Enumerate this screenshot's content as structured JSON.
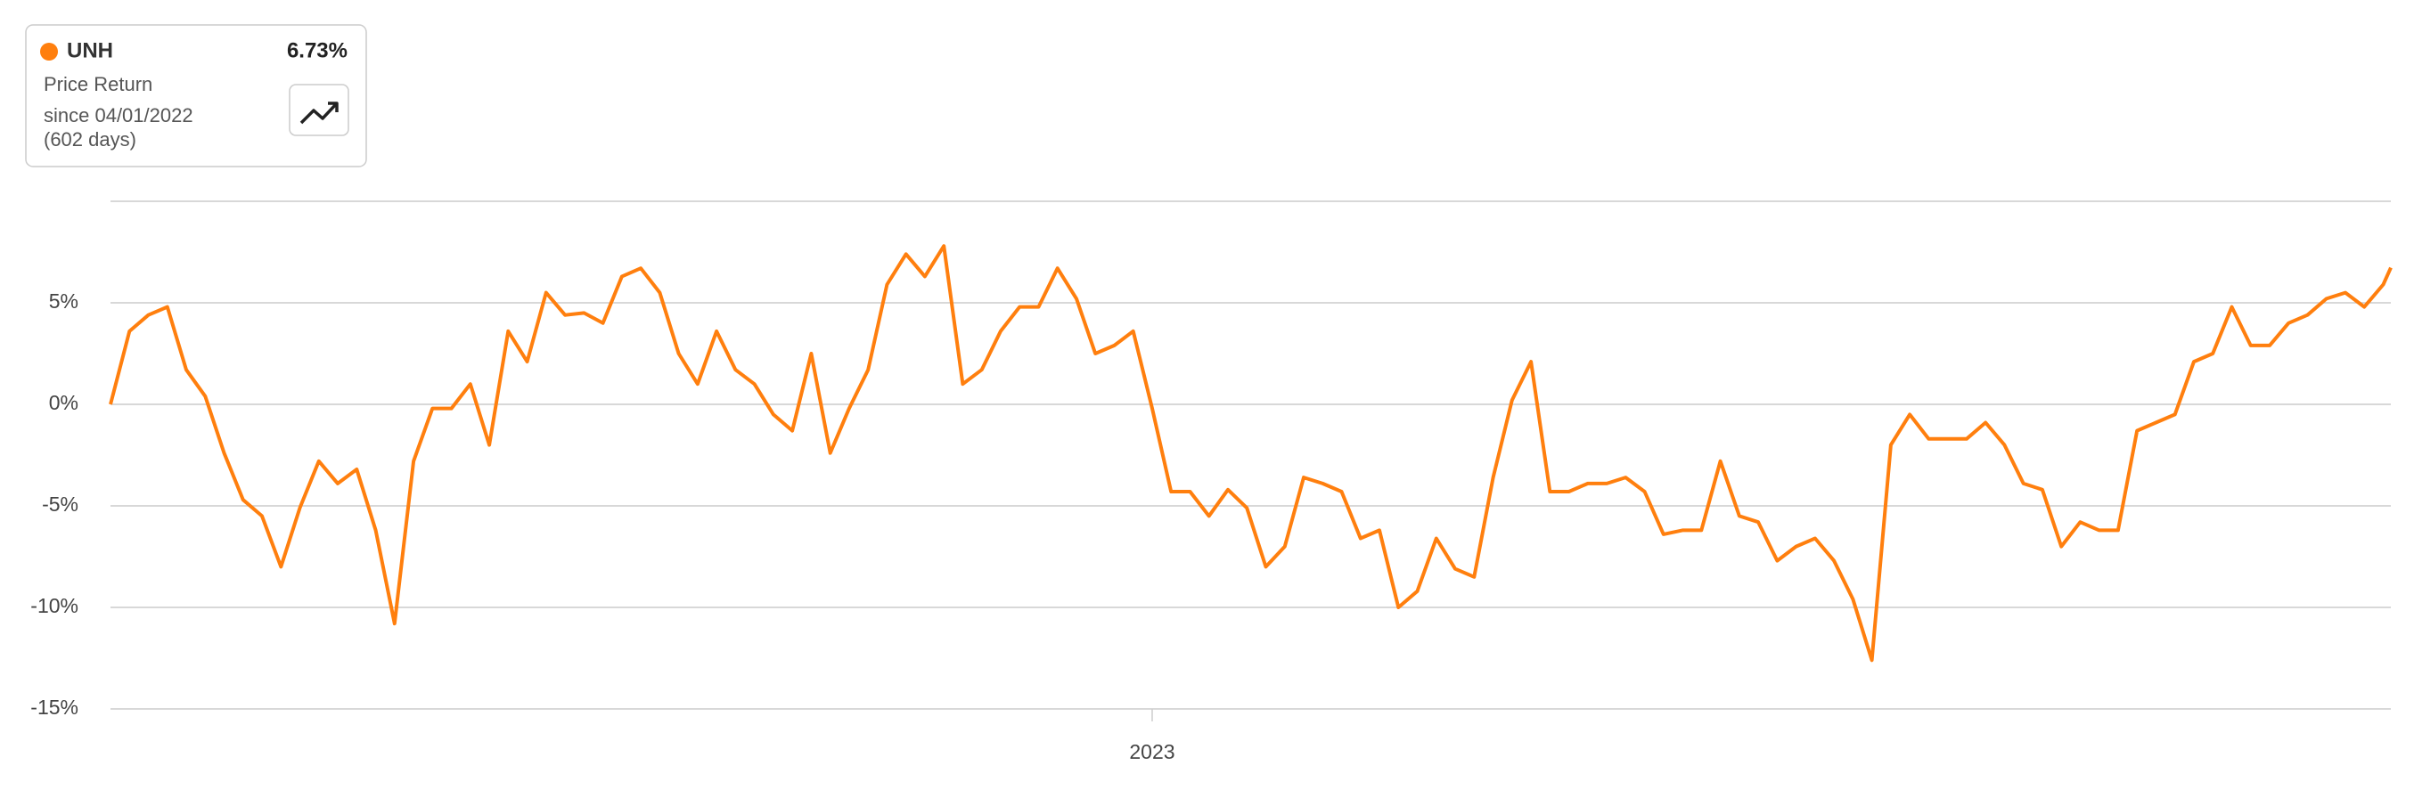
{
  "card": {
    "ticker": "UNH",
    "return": "6.73%",
    "metric": "Price Return",
    "since": "since 04/01/2022",
    "days": "(602 days)"
  },
  "chart_data": {
    "type": "line",
    "x": [
      0,
      5,
      10,
      15,
      20,
      25,
      30,
      35,
      40,
      45,
      50,
      55,
      60,
      65,
      70,
      75,
      80,
      85,
      90,
      95,
      100,
      105,
      110,
      115,
      120,
      125,
      130,
      135,
      140,
      145,
      150,
      155,
      160,
      165,
      170,
      175,
      180,
      185,
      190,
      195,
      200,
      205,
      210,
      215,
      220,
      225,
      230,
      235,
      240,
      245,
      250,
      255,
      260,
      265,
      270,
      275,
      280,
      285,
      290,
      295,
      300,
      305,
      310,
      315,
      320,
      325,
      330,
      335,
      340,
      345,
      350,
      355,
      360,
      365,
      370,
      375,
      380,
      385,
      390,
      395,
      400,
      405,
      410,
      415,
      420,
      425,
      430,
      435,
      440,
      445,
      450,
      455,
      460,
      465,
      470,
      475,
      480,
      485,
      490,
      495,
      500,
      505,
      510,
      515,
      520,
      525,
      530,
      535,
      540,
      545,
      550,
      555,
      560,
      565,
      570,
      575,
      580,
      585,
      590,
      595,
      600,
      602
    ],
    "series": [
      {
        "name": "UNH",
        "color": "#ff7f0e",
        "values": [
          0,
          3.6,
          4.4,
          4.8,
          1.7,
          0.4,
          -2.4,
          -4.7,
          -5.5,
          -8.0,
          -5.1,
          -2.8,
          -3.9,
          -3.2,
          -6.2,
          -10.8,
          -2.8,
          -0.2,
          -0.2,
          1.0,
          -2.0,
          3.6,
          2.1,
          5.5,
          4.4,
          4.5,
          4.0,
          6.3,
          6.7,
          5.5,
          2.5,
          1.0,
          3.6,
          1.7,
          1.0,
          -0.5,
          -1.3,
          2.5,
          -2.4,
          -0.2,
          1.7,
          5.9,
          7.4,
          6.3,
          7.8,
          1.0,
          1.7,
          3.6,
          4.8,
          4.8,
          6.7,
          5.2,
          2.5,
          2.9,
          3.6,
          -0.2,
          -4.3,
          -4.3,
          -5.5,
          -4.2,
          -5.1,
          -8.0,
          -7.0,
          -3.6,
          -3.9,
          -4.3,
          -6.6,
          -6.2,
          -10.0,
          -9.2,
          -6.6,
          -8.1,
          -8.5,
          -3.6,
          0.2,
          2.1,
          -4.3,
          -4.3,
          -3.9,
          -3.9,
          -3.6,
          -4.3,
          -6.4,
          -6.2,
          -6.2,
          -2.8,
          -5.5,
          -5.8,
          -7.7,
          -7.0,
          -6.6,
          -7.7,
          -9.6,
          -12.6,
          -2.0,
          -0.5,
          -1.7,
          -1.7,
          -1.7,
          -0.9,
          -2.0,
          -3.9,
          -4.2,
          -7.0,
          -5.8,
          -6.2,
          -6.2,
          -1.3,
          -0.9,
          -0.5,
          2.1,
          2.5,
          4.8,
          2.9,
          2.9,
          4.0,
          4.4,
          5.2,
          5.5,
          4.8,
          5.9,
          6.73
        ]
      }
    ],
    "xlim": [
      0,
      602
    ],
    "xticks": [
      {
        "value": 275,
        "label": "2023"
      }
    ],
    "ylim": [
      -15,
      10
    ],
    "yticks": [
      {
        "value": -15,
        "label": "-15%"
      },
      {
        "value": -10,
        "label": "-10%"
      },
      {
        "value": -5,
        "label": "-5%"
      },
      {
        "value": 0,
        "label": "0%"
      },
      {
        "value": 5,
        "label": "5%"
      }
    ],
    "grid": true
  }
}
